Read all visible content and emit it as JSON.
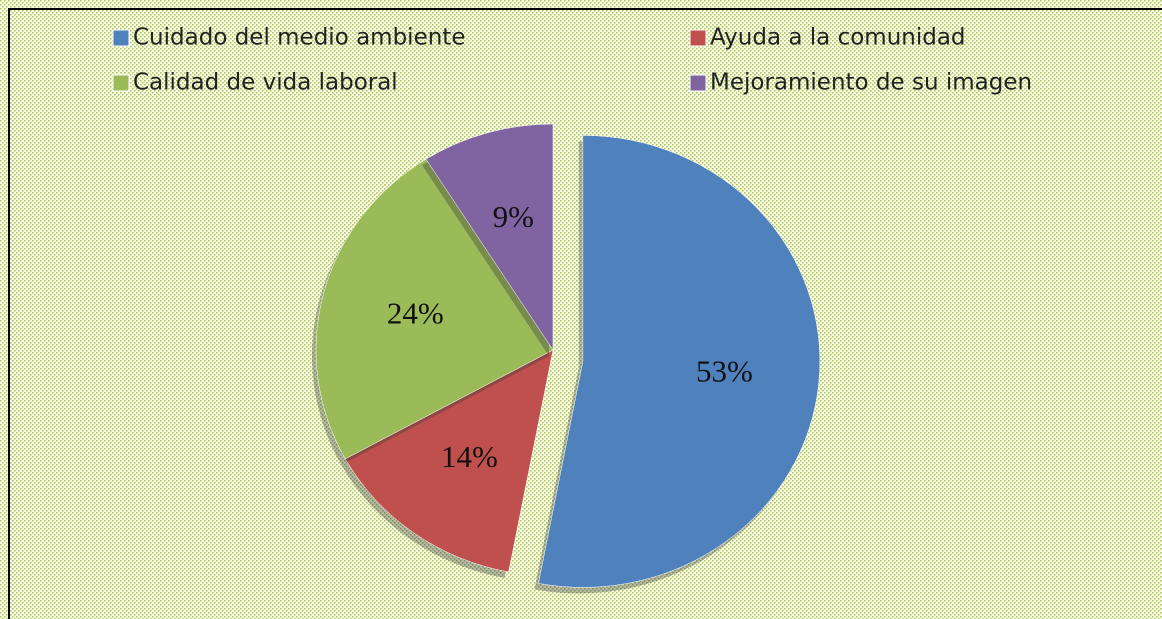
{
  "chart_data": {
    "type": "pie",
    "categories": [
      "Cuidado del medio ambiente",
      "Ayuda a la comunidad",
      "Calidad de vida laboral",
      "Mejoramiento de su imagen"
    ],
    "values": [
      53,
      14,
      24,
      9
    ],
    "value_labels": [
      "53%",
      "14%",
      "24%",
      "9%"
    ],
    "colors": [
      "#4f81bd",
      "#c0504d",
      "#9bbb59",
      "#8064a2"
    ],
    "legend": "top"
  }
}
